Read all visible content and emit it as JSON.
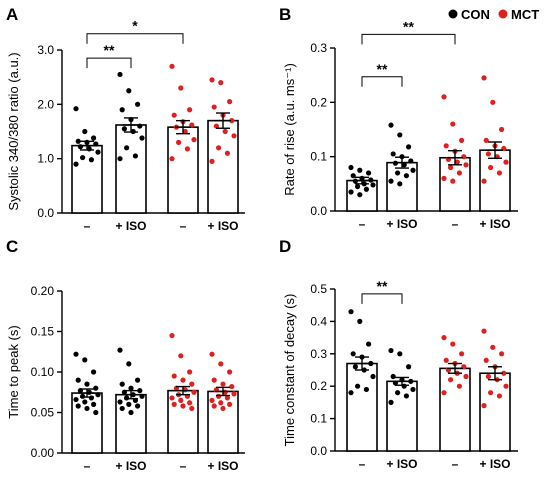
{
  "colors": {
    "CON": "#000000",
    "MCT": "#e02020"
  },
  "legend": [
    {
      "label": "CON",
      "group": "CON"
    },
    {
      "label": "MCT",
      "group": "MCT"
    }
  ],
  "chart_data": [
    {
      "type": "bar",
      "panel": "A",
      "ylabel": "Systolic 340/380 ratio (a.u.)",
      "ylim": [
        0,
        3.0
      ],
      "yticks": [
        0,
        1,
        2,
        3
      ],
      "ytick_labels": [
        "0.0",
        "1.0",
        "2.0",
        "3.0"
      ],
      "categories": [
        "–",
        "+ ISO",
        "–",
        "+ ISO"
      ],
      "groups": [
        "CON",
        "CON",
        "MCT",
        "MCT"
      ],
      "values": [
        1.24,
        1.62,
        1.58,
        1.7
      ],
      "sem": [
        0.08,
        0.13,
        0.12,
        0.14
      ],
      "points": [
        [
          1.92,
          1.5,
          1.38,
          1.32,
          1.3,
          1.27,
          1.22,
          1.18,
          1.12,
          1.02,
          0.98,
          0.9
        ],
        [
          2.55,
          2.25,
          2.0,
          1.9,
          1.72,
          1.6,
          1.55,
          1.5,
          1.38,
          1.2,
          1.05,
          1.0
        ],
        [
          2.7,
          2.3,
          1.9,
          1.8,
          1.68,
          1.62,
          1.58,
          1.5,
          1.35,
          1.3,
          1.18,
          1.0
        ],
        [
          2.45,
          2.4,
          2.05,
          1.95,
          1.8,
          1.7,
          1.6,
          1.5,
          1.42,
          1.2,
          1.1,
          0.95
        ]
      ],
      "significance": [
        {
          "bars": [
            0,
            1
          ],
          "label": "**",
          "y": 2.85
        },
        {
          "bars": [
            0,
            2
          ],
          "label": "*",
          "y": 3.3
        }
      ]
    },
    {
      "type": "bar",
      "panel": "B",
      "ylabel": "Rate of rise (a.u. ms⁻¹)",
      "ylim": [
        0,
        0.3
      ],
      "yticks": [
        0,
        0.1,
        0.2,
        0.3
      ],
      "ytick_labels": [
        "0.0",
        "0.1",
        "0.2",
        "0.3"
      ],
      "categories": [
        "–",
        "+ ISO",
        "–",
        "+ ISO"
      ],
      "groups": [
        "CON",
        "CON",
        "MCT",
        "MCT"
      ],
      "values": [
        0.056,
        0.089,
        0.098,
        0.112
      ],
      "sem": [
        0.006,
        0.01,
        0.013,
        0.015
      ],
      "points": [
        [
          0.08,
          0.075,
          0.07,
          0.065,
          0.06,
          0.057,
          0.055,
          0.05,
          0.048,
          0.045,
          0.04,
          0.035,
          0.03
        ],
        [
          0.158,
          0.14,
          0.118,
          0.105,
          0.1,
          0.092,
          0.088,
          0.085,
          0.075,
          0.07,
          0.065,
          0.055,
          0.05
        ],
        [
          0.21,
          0.16,
          0.13,
          0.12,
          0.11,
          0.1,
          0.095,
          0.09,
          0.085,
          0.08,
          0.07,
          0.06,
          0.055
        ],
        [
          0.245,
          0.2,
          0.15,
          0.13,
          0.12,
          0.115,
          0.105,
          0.1,
          0.09,
          0.08,
          0.07,
          0.055
        ]
      ],
      "significance": [
        {
          "bars": [
            0,
            1
          ],
          "label": "**",
          "y": 0.247
        },
        {
          "bars": [
            0,
            2
          ],
          "label": "**",
          "y": 0.325
        }
      ]
    },
    {
      "type": "bar",
      "panel": "C",
      "ylabel": "Time to peak (s)",
      "ylim": [
        0,
        0.2
      ],
      "yticks": [
        0,
        0.05,
        0.1,
        0.15,
        0.2
      ],
      "ytick_labels": [
        "0.00",
        "0.05",
        "0.10",
        "0.15",
        "0.20"
      ],
      "categories": [
        "–",
        "+ ISO",
        "–",
        "+ ISO"
      ],
      "groups": [
        "CON",
        "CON",
        "MCT",
        "MCT"
      ],
      "values": [
        0.074,
        0.072,
        0.077,
        0.076
      ],
      "sem": [
        0.005,
        0.005,
        0.005,
        0.005
      ],
      "points": [
        [
          0.122,
          0.115,
          0.1,
          0.09,
          0.085,
          0.08,
          0.077,
          0.075,
          0.072,
          0.07,
          0.068,
          0.066,
          0.063,
          0.06,
          0.058,
          0.055,
          0.05
        ],
        [
          0.127,
          0.11,
          0.09,
          0.085,
          0.08,
          0.077,
          0.075,
          0.072,
          0.07,
          0.068,
          0.065,
          0.063,
          0.06,
          0.058,
          0.055,
          0.05
        ],
        [
          0.145,
          0.12,
          0.1,
          0.095,
          0.09,
          0.085,
          0.08,
          0.078,
          0.075,
          0.072,
          0.07,
          0.068,
          0.065,
          0.062,
          0.06,
          0.058,
          0.055
        ],
        [
          0.122,
          0.11,
          0.1,
          0.09,
          0.085,
          0.082,
          0.078,
          0.075,
          0.073,
          0.07,
          0.068,
          0.065,
          0.062,
          0.06,
          0.058,
          0.055
        ]
      ],
      "significance": []
    },
    {
      "type": "bar",
      "panel": "D",
      "ylabel": "Time constant of decay (s)",
      "ylim": [
        0,
        0.5
      ],
      "yticks": [
        0,
        0.1,
        0.2,
        0.3,
        0.4,
        0.5
      ],
      "ytick_labels": [
        "0.0",
        "0.1",
        "0.2",
        "0.3",
        "0.4",
        "0.5"
      ],
      "categories": [
        "–",
        "+ ISO",
        "–",
        "+ ISO"
      ],
      "groups": [
        "CON",
        "CON",
        "MCT",
        "MCT"
      ],
      "values": [
        0.27,
        0.215,
        0.255,
        0.24
      ],
      "sem": [
        0.02,
        0.012,
        0.015,
        0.02
      ],
      "points": [
        [
          0.43,
          0.4,
          0.33,
          0.3,
          0.29,
          0.27,
          0.26,
          0.25,
          0.23,
          0.2,
          0.19,
          0.18
        ],
        [
          0.31,
          0.3,
          0.26,
          0.23,
          0.22,
          0.215,
          0.21,
          0.2,
          0.19,
          0.18,
          0.17,
          0.15
        ],
        [
          0.35,
          0.33,
          0.3,
          0.28,
          0.27,
          0.26,
          0.25,
          0.24,
          0.23,
          0.22,
          0.2,
          0.18
        ],
        [
          0.37,
          0.32,
          0.3,
          0.28,
          0.26,
          0.24,
          0.23,
          0.22,
          0.2,
          0.18,
          0.17,
          0.14
        ]
      ],
      "significance": [
        {
          "bars": [
            0,
            1
          ],
          "label": "**",
          "y": 0.485
        }
      ]
    }
  ]
}
